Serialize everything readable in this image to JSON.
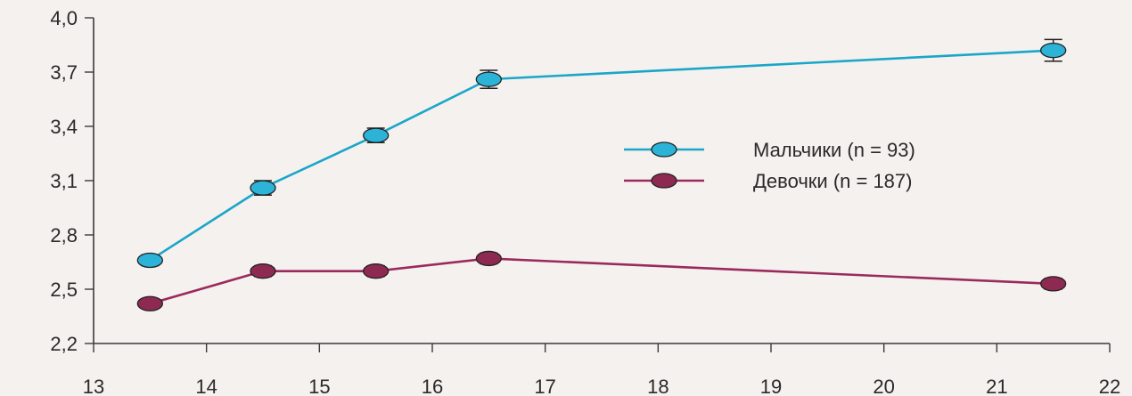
{
  "chart_data": {
    "type": "line",
    "title": "",
    "xlabel": "",
    "ylabel": "",
    "xlim": [
      13,
      22
    ],
    "ylim": [
      2.2,
      4.0
    ],
    "x_ticks": [
      "13",
      "14",
      "15",
      "16",
      "17",
      "18",
      "19",
      "20",
      "21",
      "22"
    ],
    "y_ticks": [
      "2,2",
      "2,5",
      "2,8",
      "3,1",
      "3,4",
      "3,7",
      "4,0"
    ],
    "grid": false,
    "legend_position": "right",
    "series": [
      {
        "name": "Мальчики (n = 93)",
        "color": "#1aa6c9",
        "marker_color": "#2cb3d8",
        "x": [
          13.5,
          14.5,
          15.5,
          16.5,
          21.5
        ],
        "y": [
          2.66,
          3.06,
          3.35,
          3.66,
          3.82
        ],
        "error": [
          0.03,
          0.04,
          0.04,
          0.05,
          0.06
        ]
      },
      {
        "name": "Девочки (n = 187)",
        "color": "#9b2a5c",
        "marker_color": "#8e2a52",
        "x": [
          13.5,
          14.5,
          15.5,
          16.5,
          21.5
        ],
        "y": [
          2.42,
          2.6,
          2.6,
          2.67,
          2.53
        ],
        "error": [
          0.02,
          0.03,
          0.03,
          0.03,
          0.03
        ]
      }
    ]
  }
}
